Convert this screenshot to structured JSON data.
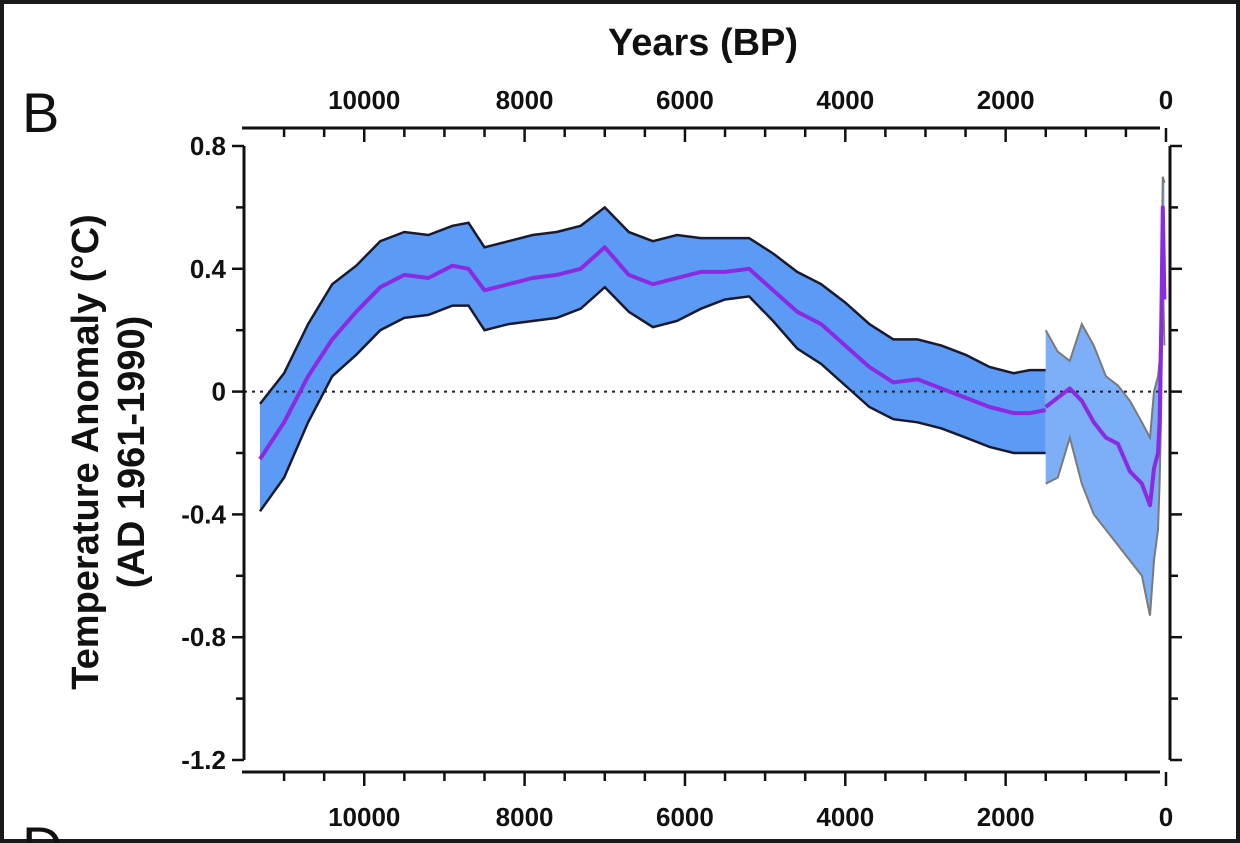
{
  "panel": {
    "letter": "B",
    "next_letter_fragment": "D"
  },
  "chart_data": {
    "type": "line",
    "title": "",
    "xlabel": "Years (BP)",
    "ylabel_line1": "Temperature Anomaly (°C)",
    "ylabel_line2": "(AD 1961-1990)",
    "x_reversed": true,
    "xlim": [
      11500,
      -50
    ],
    "ylim": [
      -1.2,
      0.8
    ],
    "x_ticks": [
      10000,
      8000,
      6000,
      4000,
      2000,
      0
    ],
    "x_tick_labels": [
      "10000",
      "8000",
      "6000",
      "4000",
      "2000",
      "0"
    ],
    "y_ticks": [
      0.8,
      0.4,
      0,
      -0.4,
      -0.8,
      -1.2
    ],
    "y_tick_labels": [
      "0.8",
      "0.4",
      "0",
      "-0.4",
      "-0.8",
      "-1.2"
    ],
    "zero_reference_line": "dotted",
    "grid": false,
    "colors": {
      "band": "#5b9bf5",
      "band_edge": "#1a1a2e",
      "mean": "#8a2be2",
      "recent_band": "#7a7a7a"
    },
    "series": [
      {
        "role": "holocene-mean",
        "x": [
          11300,
          11000,
          10700,
          10400,
          10100,
          9800,
          9500,
          9200,
          8900,
          8700,
          8500,
          8200,
          7900,
          7600,
          7300,
          7000,
          6700,
          6400,
          6100,
          5800,
          5500,
          5200,
          4900,
          4600,
          4300,
          4000,
          3700,
          3400,
          3100,
          2800,
          2500,
          2200,
          1900,
          1700,
          1500
        ],
        "y": [
          -0.22,
          -0.1,
          0.05,
          0.17,
          0.26,
          0.34,
          0.38,
          0.37,
          0.41,
          0.4,
          0.33,
          0.35,
          0.37,
          0.38,
          0.4,
          0.47,
          0.38,
          0.35,
          0.37,
          0.39,
          0.39,
          0.4,
          0.33,
          0.26,
          0.22,
          0.15,
          0.08,
          0.03,
          0.04,
          0.01,
          -0.02,
          -0.05,
          -0.07,
          -0.07,
          -0.06
        ]
      },
      {
        "role": "holocene-upper",
        "x": [
          11300,
          11000,
          10700,
          10400,
          10100,
          9800,
          9500,
          9200,
          8900,
          8700,
          8500,
          8200,
          7900,
          7600,
          7300,
          7000,
          6700,
          6400,
          6100,
          5800,
          5500,
          5200,
          4900,
          4600,
          4300,
          4000,
          3700,
          3400,
          3100,
          2800,
          2500,
          2200,
          1900,
          1700,
          1500
        ],
        "y": [
          -0.04,
          0.06,
          0.22,
          0.35,
          0.41,
          0.49,
          0.52,
          0.51,
          0.54,
          0.55,
          0.47,
          0.49,
          0.51,
          0.52,
          0.54,
          0.6,
          0.52,
          0.49,
          0.51,
          0.5,
          0.5,
          0.5,
          0.45,
          0.39,
          0.35,
          0.29,
          0.22,
          0.17,
          0.17,
          0.15,
          0.12,
          0.08,
          0.06,
          0.07,
          0.07
        ]
      },
      {
        "role": "holocene-lower",
        "x": [
          11300,
          11000,
          10700,
          10400,
          10100,
          9800,
          9500,
          9200,
          8900,
          8700,
          8500,
          8200,
          7900,
          7600,
          7300,
          7000,
          6700,
          6400,
          6100,
          5800,
          5500,
          5200,
          4900,
          4600,
          4300,
          4000,
          3700,
          3400,
          3100,
          2800,
          2500,
          2200,
          1900,
          1700,
          1500
        ],
        "y": [
          -0.39,
          -0.28,
          -0.1,
          0.05,
          0.12,
          0.2,
          0.24,
          0.25,
          0.28,
          0.28,
          0.2,
          0.22,
          0.23,
          0.24,
          0.27,
          0.34,
          0.26,
          0.21,
          0.23,
          0.27,
          0.3,
          0.31,
          0.23,
          0.14,
          0.09,
          0.02,
          -0.05,
          -0.09,
          -0.1,
          -0.12,
          -0.15,
          -0.18,
          -0.2,
          -0.2,
          -0.2
        ]
      },
      {
        "role": "recent-mean",
        "x": [
          1500,
          1350,
          1200,
          1050,
          900,
          750,
          600,
          450,
          300,
          200,
          150,
          100,
          80,
          60,
          40,
          20
        ],
        "y": [
          -0.05,
          -0.02,
          0.01,
          -0.03,
          -0.1,
          -0.15,
          -0.17,
          -0.26,
          -0.3,
          -0.37,
          -0.25,
          -0.2,
          -0.1,
          0.2,
          0.6,
          0.3
        ]
      },
      {
        "role": "recent-upper",
        "x": [
          1500,
          1350,
          1200,
          1050,
          900,
          750,
          600,
          450,
          300,
          200,
          150,
          100,
          80,
          60,
          40,
          20
        ],
        "y": [
          0.2,
          0.13,
          0.1,
          0.22,
          0.15,
          0.05,
          0.02,
          -0.03,
          -0.1,
          -0.15,
          0.0,
          0.05,
          0.1,
          0.3,
          0.7,
          0.68
        ]
      },
      {
        "role": "recent-lower",
        "x": [
          1500,
          1350,
          1200,
          1050,
          900,
          750,
          600,
          450,
          300,
          200,
          150,
          100,
          80,
          60,
          40,
          20
        ],
        "y": [
          -0.3,
          -0.28,
          -0.15,
          -0.3,
          -0.4,
          -0.45,
          -0.5,
          -0.55,
          -0.6,
          -0.73,
          -0.55,
          -0.45,
          -0.3,
          -0.05,
          0.4,
          0.15
        ]
      }
    ]
  }
}
